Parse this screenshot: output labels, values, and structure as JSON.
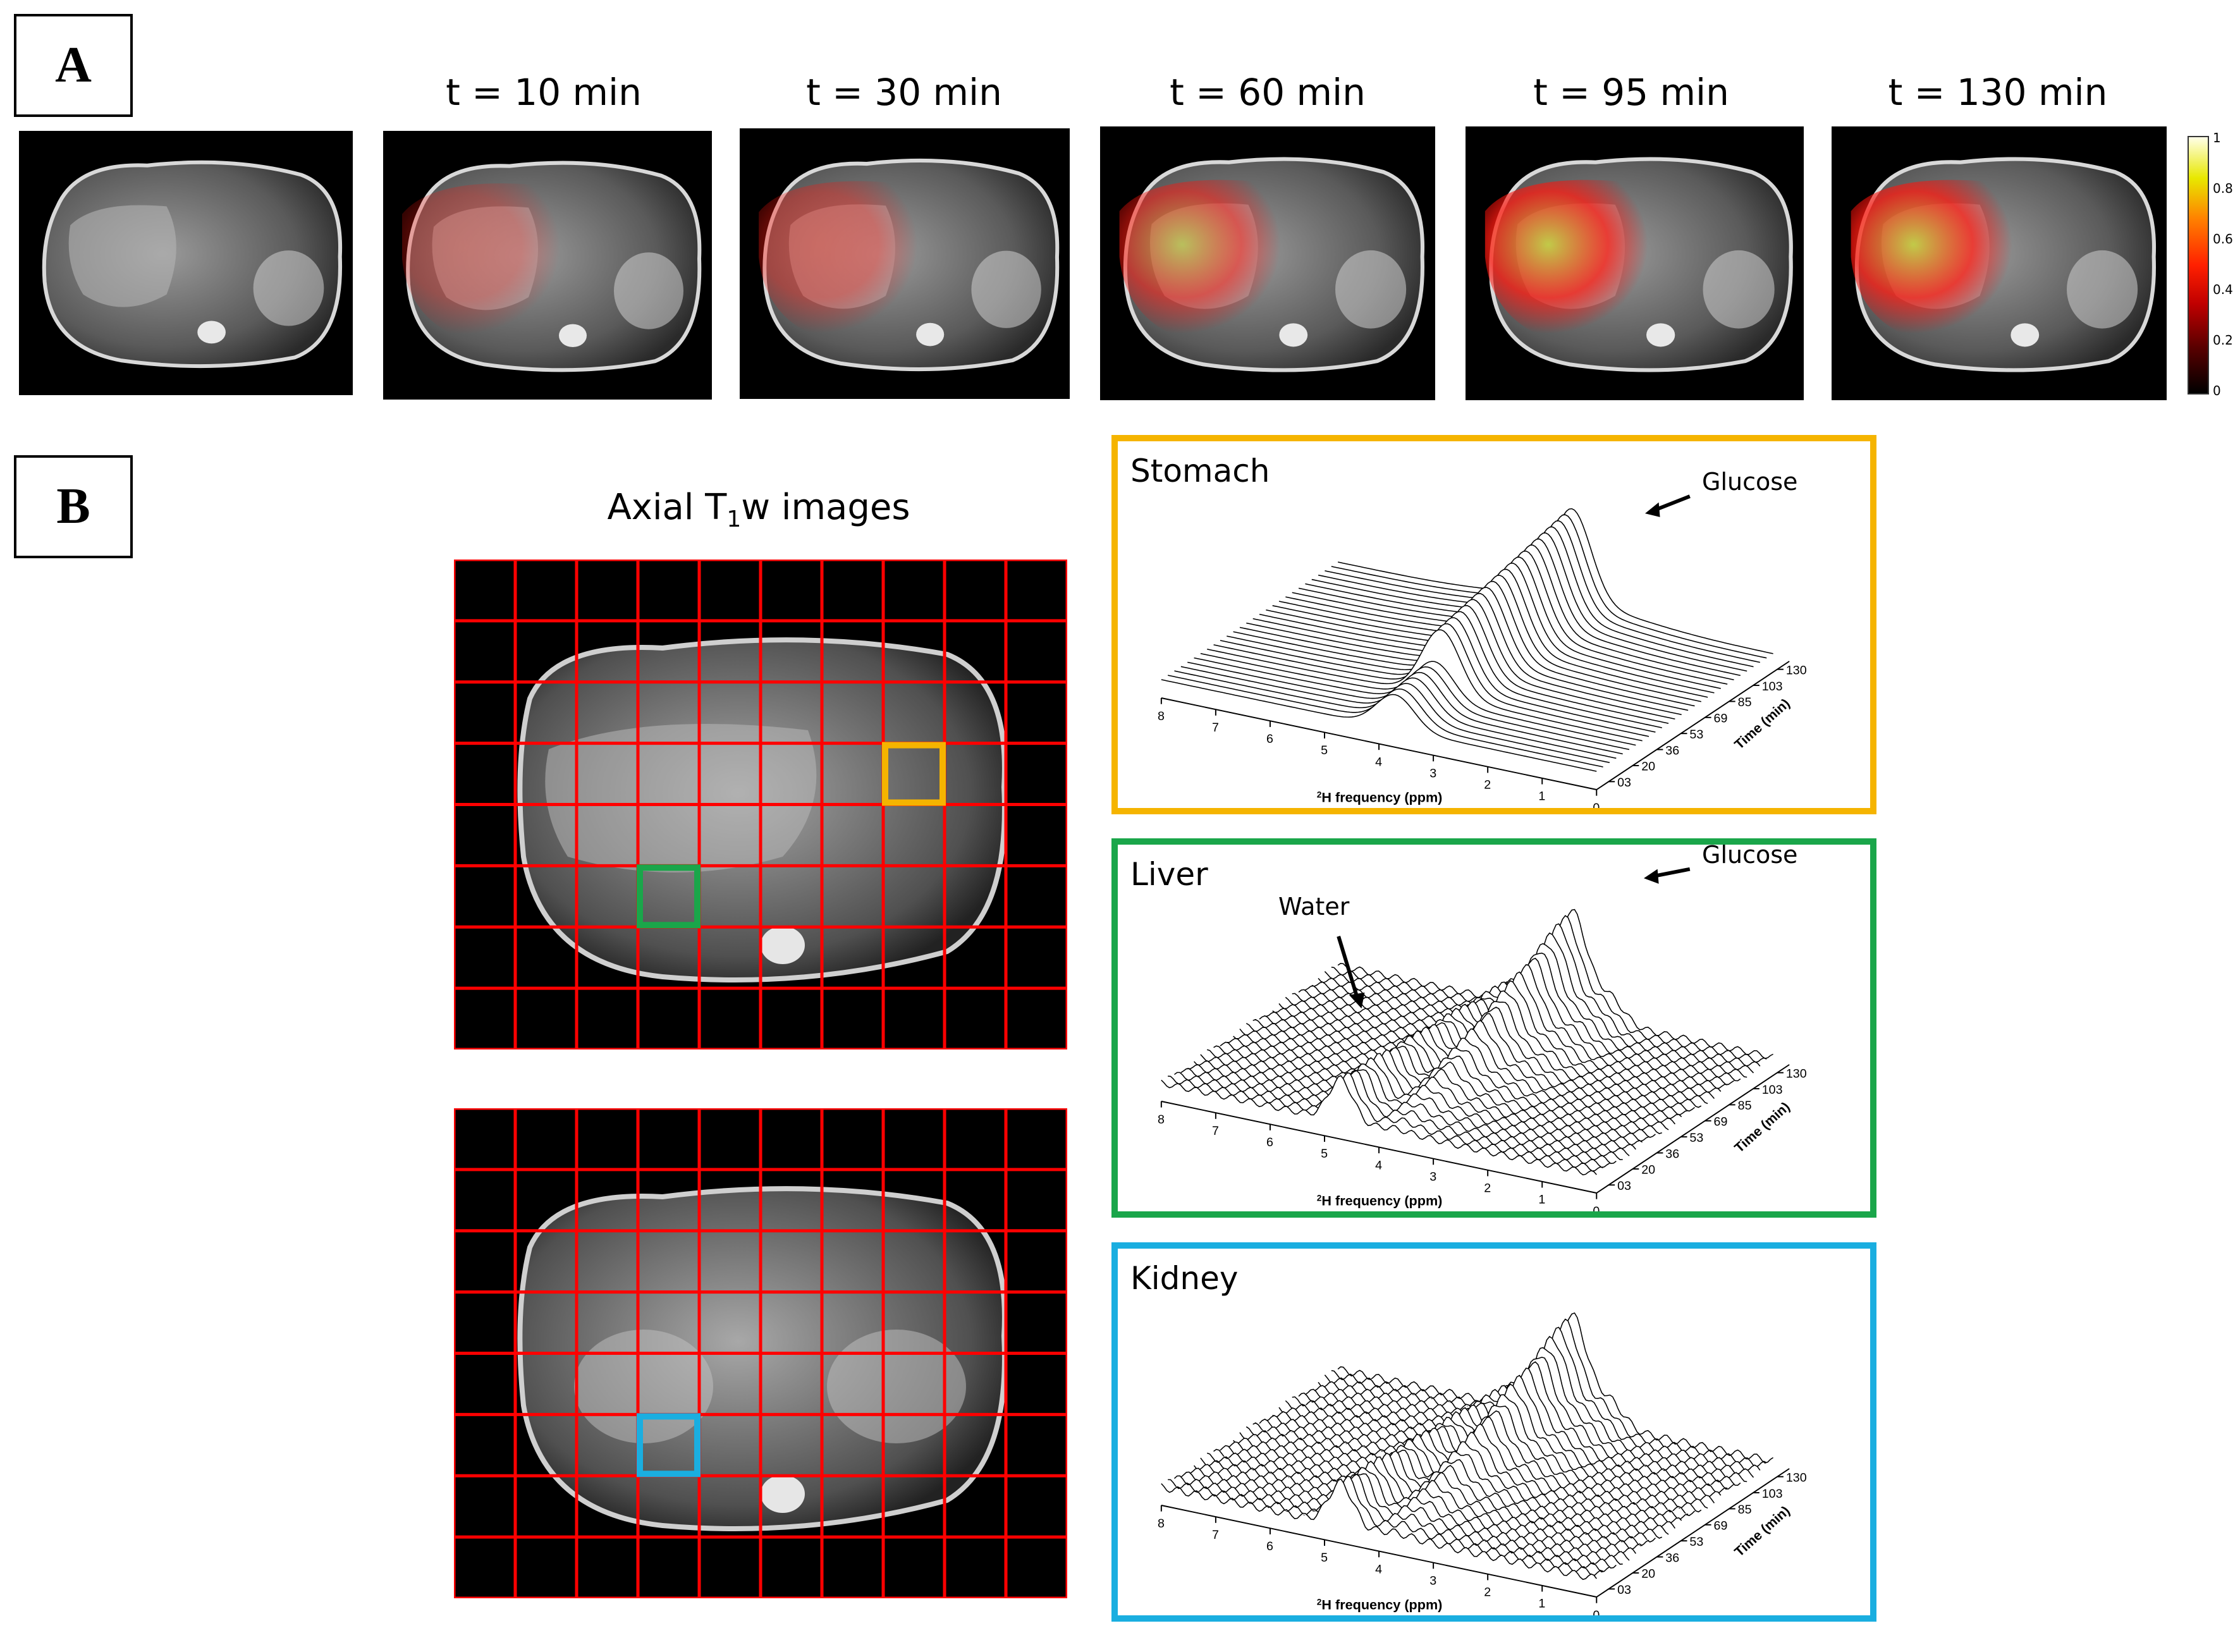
{
  "panel_a": {
    "letter": "A",
    "time_labels": [
      "t = 10 min",
      "t = 30 min",
      "t = 60 min",
      "t = 95 min",
      "t = 130 min"
    ],
    "colorbar": {
      "ticks": [
        "1",
        "0.8",
        "0.6",
        "0.4",
        "0.2",
        "0"
      ],
      "colors": [
        "#000000",
        "#c00000",
        "#ff2000",
        "#ff8000",
        "#e8e800",
        "#ffffe8"
      ]
    }
  },
  "panel_b": {
    "letter": "B",
    "axial_title": "Axial T",
    "axial_title_sub": "1",
    "axial_title_suffix": "w images",
    "grid_color": "#ff0000",
    "roi_colors": {
      "stomach": "#f5b400",
      "liver": "#1aa64a",
      "kidney": "#1aaee0"
    },
    "spectra": [
      {
        "title": "Stomach",
        "frame_color": "#f5b400",
        "annotations": [
          "Glucose"
        ]
      },
      {
        "title": "Liver",
        "frame_color": "#1aa64a",
        "annotations": [
          "Glucose",
          "Water"
        ]
      },
      {
        "title": "Kidney",
        "frame_color": "#1aaee0",
        "annotations": []
      }
    ],
    "axis": {
      "x_ticks": [
        "8",
        "7",
        "6",
        "5",
        "4",
        "3",
        "2",
        "1",
        "0"
      ],
      "x_label_sup": "2",
      "x_label": "H frequency (ppm)",
      "time_ticks": [
        "03",
        "20",
        "36",
        "53",
        "69",
        "85",
        "103",
        "130"
      ],
      "time_label": "Time (min)"
    }
  }
}
